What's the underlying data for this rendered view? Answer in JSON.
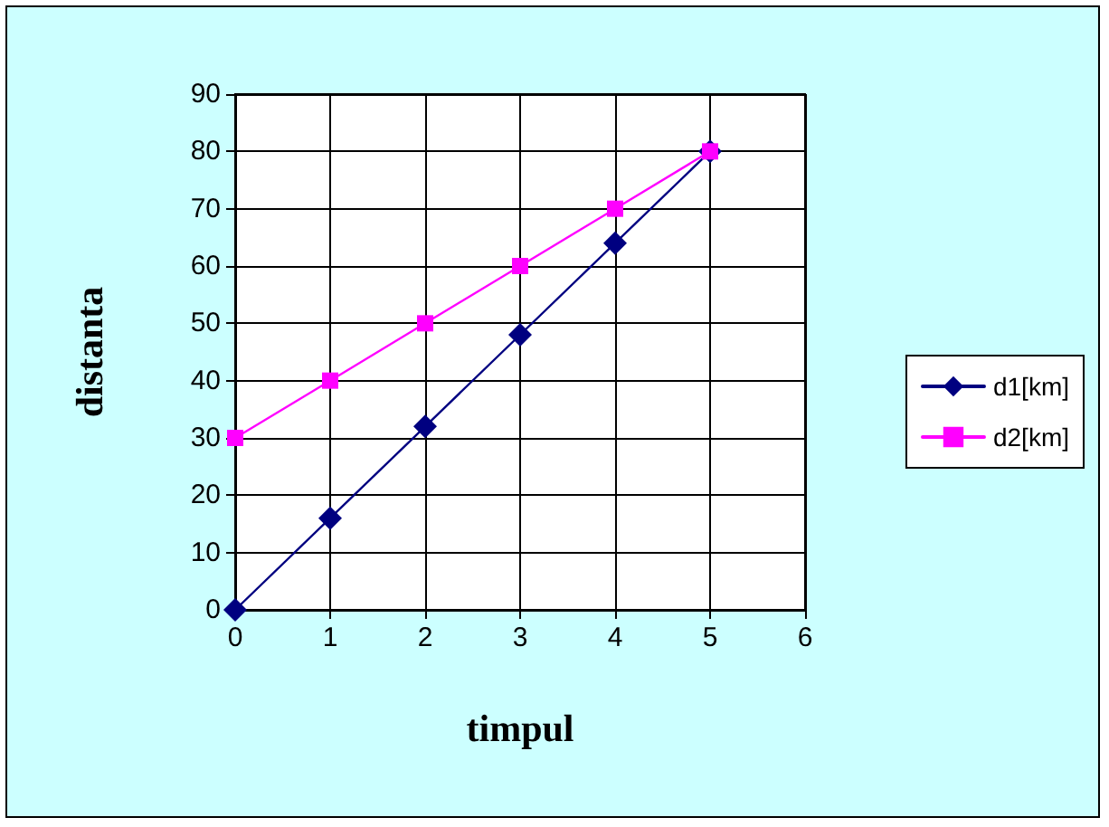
{
  "chart_data": {
    "type": "line",
    "xlabel": "timpul",
    "ylabel": "distanta",
    "x": [
      0,
      1,
      2,
      3,
      4,
      5
    ],
    "series": [
      {
        "name": "d1[km]",
        "color": "#000080",
        "marker": "diamond",
        "values": [
          0,
          16,
          32,
          48,
          64,
          80
        ]
      },
      {
        "name": "d2[km]",
        "color": "#ff00ff",
        "marker": "square",
        "values": [
          30,
          40,
          50,
          60,
          70,
          80
        ]
      }
    ],
    "xlim": [
      0,
      6
    ],
    "xticks": [
      0,
      1,
      2,
      3,
      4,
      5,
      6
    ],
    "ylim": [
      0,
      90
    ],
    "yticks": [
      0,
      10,
      20,
      30,
      40,
      50,
      60,
      70,
      80,
      90
    ],
    "grid": true,
    "legend": "right",
    "line_style": "solid"
  }
}
